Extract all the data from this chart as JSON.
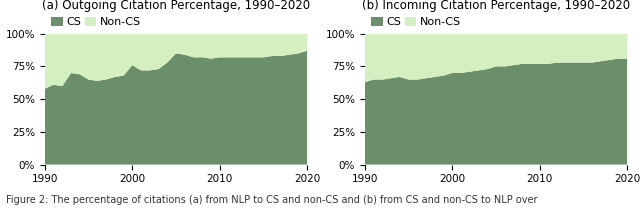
{
  "title_a": "(a) Outgoing Citation Percentage, 1990–2020",
  "title_b": "(b) Incoming Citation Percentage, 1990–2020",
  "cs_color": "#6b8f6b",
  "noncs_color": "#d4f0c0",
  "years_a": [
    1990,
    1991,
    1992,
    1993,
    1994,
    1995,
    1996,
    1997,
    1998,
    1999,
    2000,
    2001,
    2002,
    2003,
    2004,
    2005,
    2006,
    2007,
    2008,
    2009,
    2010,
    2011,
    2012,
    2013,
    2014,
    2015,
    2016,
    2017,
    2018,
    2019,
    2020
  ],
  "cs_a": [
    0.58,
    0.61,
    0.6,
    0.7,
    0.69,
    0.65,
    0.64,
    0.65,
    0.67,
    0.68,
    0.76,
    0.72,
    0.72,
    0.73,
    0.78,
    0.85,
    0.84,
    0.82,
    0.82,
    0.81,
    0.82,
    0.82,
    0.82,
    0.82,
    0.82,
    0.82,
    0.83,
    0.83,
    0.84,
    0.85,
    0.87
  ],
  "years_b": [
    1990,
    1991,
    1992,
    1993,
    1994,
    1995,
    1996,
    1997,
    1998,
    1999,
    2000,
    2001,
    2002,
    2003,
    2004,
    2005,
    2006,
    2007,
    2008,
    2009,
    2010,
    2011,
    2012,
    2013,
    2014,
    2015,
    2016,
    2017,
    2018,
    2019,
    2020
  ],
  "cs_b": [
    0.63,
    0.65,
    0.65,
    0.66,
    0.67,
    0.65,
    0.65,
    0.66,
    0.67,
    0.68,
    0.7,
    0.7,
    0.71,
    0.72,
    0.73,
    0.75,
    0.75,
    0.76,
    0.77,
    0.77,
    0.77,
    0.77,
    0.78,
    0.78,
    0.78,
    0.78,
    0.78,
    0.79,
    0.8,
    0.81,
    0.81
  ],
  "legend_labels": [
    "CS",
    "Non-CS"
  ],
  "yticks": [
    0.0,
    0.25,
    0.5,
    0.75,
    1.0
  ],
  "ytick_labels": [
    "0%",
    "25%",
    "50%",
    "75%",
    "100%"
  ],
  "xticks": [
    1990,
    2000,
    2010,
    2020
  ],
  "background_color": "#ffffff",
  "grid_color": "#cccccc",
  "title_fontsize": 8.5,
  "legend_fontsize": 8,
  "tick_fontsize": 7.5,
  "caption": "Figure 2: The percentage of citations (a) from NLP to CS and non-CS and (b) from CS and non-CS to NLP over",
  "caption_fontsize": 7
}
